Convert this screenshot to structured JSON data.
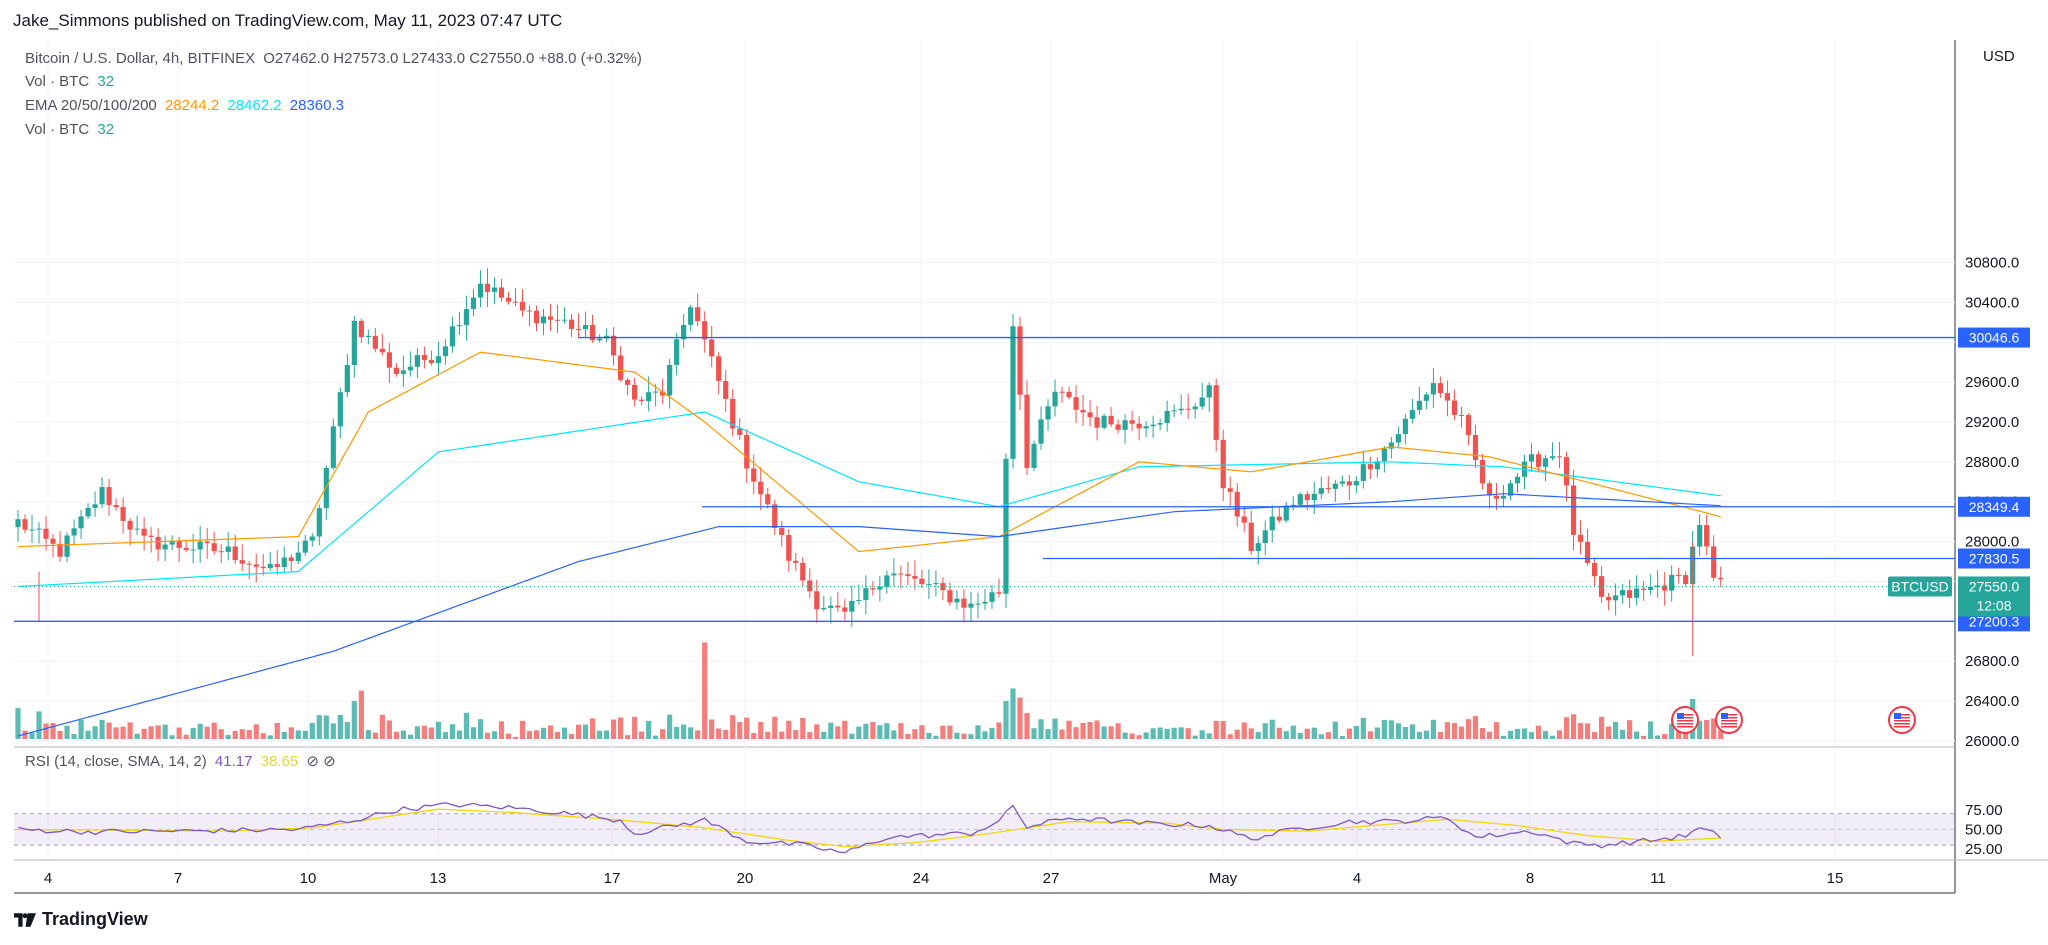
{
  "header": {
    "published": "Jake_Simmons published on TradingView.com, May 11, 2023 07:47 UTC"
  },
  "legend": {
    "symbol": "Bitcoin / U.S. Dollar, 4h, BITFINEX",
    "ohlc": "O27462.0  H27573.0  L27433.0  C27550.0  +88.0 (+0.32%)",
    "vol1_label": "Vol · BTC",
    "vol1_value": "32",
    "ema_label": "EMA 20/50/100/200",
    "ema20": "28244.2",
    "ema50": "28462.2",
    "ema100": "28360.3",
    "vol2_label": "Vol · BTC",
    "vol2_value": "32",
    "rsi_label": "RSI (14, close, SMA, 14, 2)",
    "rsi_value": "41.17",
    "rsi_sma": "38.65"
  },
  "brand": {
    "name": "TradingView"
  },
  "colors": {
    "up": "#26a69a",
    "down": "#ef5350",
    "ema20": "#ff9800",
    "ema50": "#00e5ff",
    "ema100": "#2962ff",
    "hline": "#2962ff",
    "rsi": "#7e57c2",
    "rsi_sma": "#ffeb3b"
  },
  "chart_data": {
    "type": "candlestick",
    "title": "Bitcoin / U.S. Dollar, 4h, BITFINEX",
    "price_axis": {
      "unit": "USD",
      "ticks": [
        26000,
        26400,
        26800,
        27200,
        27600,
        28000,
        28400,
        28800,
        29200,
        29600,
        30000,
        30400,
        30800
      ]
    },
    "price_range": [
      25950,
      31400
    ],
    "x_ticks": [
      "4",
      "7",
      "10",
      "13",
      "17",
      "20",
      "24",
      "27",
      "May",
      "4",
      "8",
      "11",
      "15"
    ],
    "horizontal_levels": [
      {
        "label": "30046.6",
        "price": 30046.6,
        "from": "Apr 16"
      },
      {
        "label": "28349.4",
        "price": 28349.4,
        "from": "Apr 19"
      },
      {
        "label": "27830.5",
        "price": 27830.5,
        "from": "Apr 26"
      },
      {
        "label": "27200.3",
        "price": 27200.3,
        "from": "Apr 3"
      }
    ],
    "current": {
      "symbol": "BTCUSD",
      "price": "27550.0",
      "countdown": "12:08"
    },
    "close_anchors": [
      [
        0,
        28200
      ],
      [
        6,
        27900
      ],
      [
        12,
        28500
      ],
      [
        18,
        28000
      ],
      [
        24,
        27950
      ],
      [
        30,
        27900
      ],
      [
        36,
        27700
      ],
      [
        42,
        28000
      ],
      [
        48,
        30200
      ],
      [
        54,
        29700
      ],
      [
        60,
        29900
      ],
      [
        66,
        30600
      ],
      [
        72,
        30300
      ],
      [
        78,
        30200
      ],
      [
        84,
        30000
      ],
      [
        88,
        29400
      ],
      [
        92,
        29500
      ],
      [
        96,
        30400
      ],
      [
        100,
        29600
      ],
      [
        104,
        28800
      ],
      [
        110,
        27850
      ],
      [
        114,
        27400
      ],
      [
        118,
        27250
      ],
      [
        124,
        27700
      ],
      [
        130,
        27550
      ],
      [
        136,
        27350
      ],
      [
        140,
        27500
      ],
      [
        142,
        30200
      ],
      [
        144,
        28800
      ],
      [
        148,
        29500
      ],
      [
        154,
        29200
      ],
      [
        160,
        29200
      ],
      [
        166,
        29300
      ],
      [
        170,
        29500
      ],
      [
        172,
        28600
      ],
      [
        176,
        27950
      ],
      [
        182,
        28400
      ],
      [
        190,
        28600
      ],
      [
        196,
        29000
      ],
      [
        202,
        29600
      ],
      [
        206,
        29200
      ],
      [
        210,
        28400
      ],
      [
        216,
        28800
      ],
      [
        220,
        28900
      ],
      [
        222,
        28100
      ],
      [
        226,
        27400
      ],
      [
        232,
        27500
      ],
      [
        238,
        27650
      ],
      [
        240,
        28200
      ],
      [
        242,
        27600
      ],
      [
        243,
        27550
      ]
    ],
    "ema20_anchors": [
      [
        0,
        27950
      ],
      [
        40,
        28050
      ],
      [
        50,
        29300
      ],
      [
        66,
        29900
      ],
      [
        88,
        29700
      ],
      [
        98,
        29200
      ],
      [
        120,
        27900
      ],
      [
        140,
        28050
      ],
      [
        160,
        28800
      ],
      [
        176,
        28700
      ],
      [
        196,
        28950
      ],
      [
        210,
        28850
      ],
      [
        243,
        28250
      ]
    ],
    "ema50_anchors": [
      [
        0,
        27550
      ],
      [
        40,
        27700
      ],
      [
        60,
        28900
      ],
      [
        98,
        29300
      ],
      [
        120,
        28600
      ],
      [
        140,
        28350
      ],
      [
        160,
        28750
      ],
      [
        196,
        28800
      ],
      [
        212,
        28750
      ],
      [
        243,
        28460
      ]
    ],
    "ema100_anchors": [
      [
        0,
        26050
      ],
      [
        45,
        26900
      ],
      [
        80,
        27800
      ],
      [
        100,
        28150
      ],
      [
        120,
        28150
      ],
      [
        140,
        28050
      ],
      [
        165,
        28300
      ],
      [
        196,
        28400
      ],
      [
        212,
        28480
      ],
      [
        243,
        28360
      ]
    ],
    "volume": {
      "range": [
        0,
        150
      ],
      "spikes": [
        [
          98,
          140
        ],
        [
          141,
          55
        ],
        [
          143,
          60
        ],
        [
          239,
          58
        ],
        [
          48,
          55
        ],
        [
          49,
          70
        ],
        [
          0,
          45
        ],
        [
          3,
          40
        ],
        [
          52,
          35
        ],
        [
          64,
          38
        ],
        [
          88,
          32
        ]
      ]
    },
    "rsi": {
      "ticks": [
        25,
        50,
        75
      ],
      "band": [
        30,
        70
      ],
      "rsi_anchors": [
        [
          0,
          50
        ],
        [
          10,
          47
        ],
        [
          24,
          48
        ],
        [
          40,
          50
        ],
        [
          48,
          62
        ],
        [
          54,
          75
        ],
        [
          62,
          82
        ],
        [
          70,
          78
        ],
        [
          76,
          73
        ],
        [
          86,
          62
        ],
        [
          88,
          45
        ],
        [
          92,
          52
        ],
        [
          98,
          62
        ],
        [
          104,
          35
        ],
        [
          112,
          30
        ],
        [
          118,
          20
        ],
        [
          124,
          40
        ],
        [
          136,
          45
        ],
        [
          140,
          60
        ],
        [
          142,
          80
        ],
        [
          144,
          53
        ],
        [
          150,
          65
        ],
        [
          160,
          58
        ],
        [
          170,
          55
        ],
        [
          176,
          38
        ],
        [
          182,
          50
        ],
        [
          190,
          60
        ],
        [
          196,
          60
        ],
        [
          204,
          65
        ],
        [
          208,
          40
        ],
        [
          216,
          48
        ],
        [
          222,
          32
        ],
        [
          226,
          30
        ],
        [
          234,
          37
        ],
        [
          238,
          42
        ],
        [
          240,
          51
        ],
        [
          243,
          41
        ]
      ],
      "sma_anchors": [
        [
          0,
          50
        ],
        [
          30,
          48
        ],
        [
          42,
          52
        ],
        [
          60,
          76
        ],
        [
          70,
          72
        ],
        [
          86,
          62
        ],
        [
          98,
          52
        ],
        [
          110,
          36
        ],
        [
          118,
          28
        ],
        [
          128,
          33
        ],
        [
          138,
          44
        ],
        [
          150,
          60
        ],
        [
          164,
          58
        ],
        [
          172,
          50
        ],
        [
          184,
          48
        ],
        [
          196,
          57
        ],
        [
          204,
          63
        ],
        [
          214,
          55
        ],
        [
          224,
          42
        ],
        [
          234,
          35
        ],
        [
          243,
          39
        ]
      ]
    },
    "markers": [
      "us-flag-icon",
      "us-flag-icon",
      "us-flag-icon"
    ]
  }
}
